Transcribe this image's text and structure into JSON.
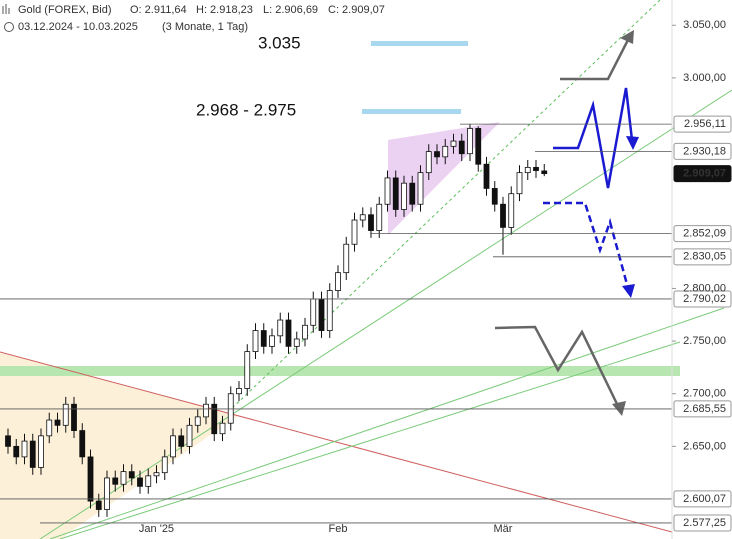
{
  "chart_data": {
    "type": "candlestick",
    "header": {
      "symbol": "Gold (FOREX, Bid)",
      "open": "O: 2.911,64",
      "high": "H: 2.918,23",
      "low": "L: 2.906,69",
      "close": "C: 2.909,07",
      "range": "03.12.2024 - 10.03.2025",
      "period": "(3 Monate, 1 Tag)"
    },
    "annotations": [
      "3.035",
      "2.968 - 2.975"
    ],
    "categories": [
      null,
      null,
      null,
      null,
      null,
      null,
      null,
      null,
      null,
      null,
      null,
      null,
      null,
      null,
      null,
      null,
      null,
      null,
      "Jan '25",
      null,
      null,
      null,
      null,
      null,
      null,
      null,
      null,
      null,
      null,
      null,
      null,
      null,
      null,
      null,
      null,
      null,
      null,
      null,
      null,
      null,
      "Feb",
      null,
      null,
      null,
      null,
      null,
      null,
      null,
      null,
      null,
      null,
      null,
      null,
      null,
      null,
      null,
      null,
      null,
      null,
      null,
      "Mär",
      null,
      null,
      null,
      null,
      null
    ],
    "open": [
      2660,
      2650,
      2640,
      2655,
      2630,
      2660,
      2675,
      2670,
      2690,
      2665,
      2640,
      2598,
      2590,
      2620,
      2614,
      2626,
      2620,
      2612,
      2622,
      2625,
      2640,
      2660,
      2650,
      2670,
      2678,
      2690,
      2662,
      2672,
      2700,
      2705,
      2740,
      2760,
      2745,
      2755,
      2770,
      2745,
      2752,
      2765,
      2790,
      2760,
      2798,
      2815,
      2842,
      2865,
      2870,
      2855,
      2880,
      2905,
      2875,
      2900,
      2880,
      2910,
      2930,
      2925,
      2935,
      2940,
      2928,
      2952,
      2918,
      2895,
      2880,
      2858,
      2890,
      2910,
      2915,
      2911.64
    ],
    "high": [
      2667,
      2657,
      2662,
      2662,
      2667,
      2682,
      2682,
      2697,
      2697,
      2672,
      2647,
      2605,
      2627,
      2627,
      2633,
      2633,
      2627,
      2629,
      2632,
      2647,
      2667,
      2667,
      2677,
      2685,
      2697,
      2697,
      2679,
      2707,
      2712,
      2747,
      2767,
      2767,
      2762,
      2777,
      2777,
      2759,
      2772,
      2797,
      2797,
      2805,
      2822,
      2849,
      2872,
      2877,
      2877,
      2887,
      2912,
      2912,
      2907,
      2907,
      2917,
      2937,
      2937,
      2942,
      2947,
      2947,
      2956.11,
      2954,
      2925,
      2902,
      2887,
      2897,
      2917,
      2922,
      2922,
      2918.23
    ],
    "low": [
      2643,
      2633,
      2633,
      2623,
      2623,
      2653,
      2663,
      2663,
      2658,
      2633,
      2591,
      2583,
      2583,
      2607,
      2607,
      2613,
      2605,
      2605,
      2615,
      2618,
      2633,
      2643,
      2643,
      2663,
      2671,
      2655,
      2655,
      2665,
      2693,
      2698,
      2733,
      2738,
      2738,
      2748,
      2738,
      2738,
      2745,
      2758,
      2753,
      2753,
      2791,
      2808,
      2835,
      2858,
      2848,
      2848,
      2873,
      2868,
      2868,
      2873,
      2873,
      2903,
      2918,
      2918,
      2928,
      2921,
      2921,
      2911,
      2888,
      2873,
      2832,
      2851,
      2883,
      2903,
      2905,
      2906.69
    ],
    "close": [
      2650,
      2640,
      2655,
      2630,
      2660,
      2675,
      2670,
      2690,
      2665,
      2640,
      2598,
      2590,
      2620,
      2614,
      2626,
      2620,
      2612,
      2622,
      2625,
      2640,
      2660,
      2650,
      2670,
      2678,
      2690,
      2662,
      2672,
      2700,
      2705,
      2740,
      2760,
      2745,
      2755,
      2770,
      2745,
      2752,
      2765,
      2790,
      2760,
      2798,
      2815,
      2842,
      2865,
      2870,
      2855,
      2880,
      2905,
      2875,
      2900,
      2880,
      2910,
      2930,
      2925,
      2935,
      2940,
      2928,
      2952,
      2918,
      2895,
      2880,
      2858,
      2890,
      2910,
      2915,
      2912,
      2909.07
    ],
    "ylim": [
      2562,
      3074
    ],
    "yticks": [
      {
        "value": 3050,
        "label": "3.050,00"
      },
      {
        "value": 3000,
        "label": "3.000,00"
      },
      {
        "value": 2800,
        "label": "2.800,00"
      },
      {
        "value": 2750,
        "label": "2.750,00"
      },
      {
        "value": 2700,
        "label": "2.700,00"
      },
      {
        "value": 2650,
        "label": "2.650,00"
      }
    ],
    "levels": [
      {
        "value": 2956.11,
        "label": "2.956,11"
      },
      {
        "value": 2930.18,
        "label": "2.930,18"
      },
      {
        "value": 2909.07,
        "label": "2.909,07"
      },
      {
        "value": 2852.09,
        "label": "2.852,09"
      },
      {
        "value": 2830.05,
        "label": "2.830,05"
      },
      {
        "value": 2790.02,
        "label": "2.790,02"
      },
      {
        "value": 2685.55,
        "label": "2.685,55"
      },
      {
        "value": 2600.07,
        "label": "2.600,07"
      },
      {
        "value": 2577.25,
        "label": "2.577,25"
      }
    ],
    "up_color": "#ffffff",
    "down_color": "#111111"
  }
}
